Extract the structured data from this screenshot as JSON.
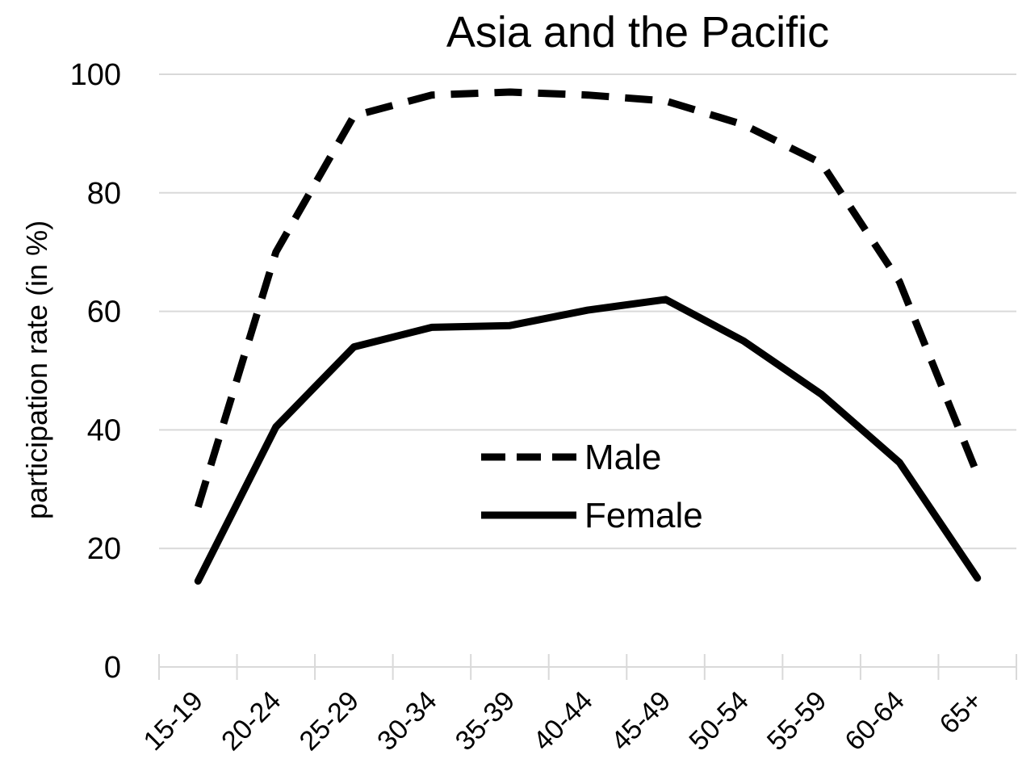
{
  "chart_data": {
    "type": "line",
    "title": "Asia and the Pacific",
    "xlabel": "",
    "ylabel": "participation rate (in %)",
    "ylim": [
      0,
      100
    ],
    "yticks": [
      "0",
      "20",
      "40",
      "60",
      "80",
      "100"
    ],
    "grid": true,
    "legend_position": "center",
    "categories": [
      "15-19",
      "20-24",
      "25-29",
      "30-34",
      "35-39",
      "40-44",
      "45-49",
      "50-54",
      "55-59",
      "60-64",
      "65+"
    ],
    "series": [
      {
        "name": "Male",
        "style": "dashed",
        "color": "#000000",
        "values": [
          27,
          70,
          93,
          96.5,
          97,
          96.5,
          95.5,
          91.5,
          85,
          65,
          32.5
        ]
      },
      {
        "name": "Female",
        "style": "solid",
        "color": "#000000",
        "values": [
          14.5,
          40.5,
          54,
          57.3,
          57.6,
          60.2,
          62,
          55,
          46,
          34.5,
          15
        ]
      }
    ]
  }
}
